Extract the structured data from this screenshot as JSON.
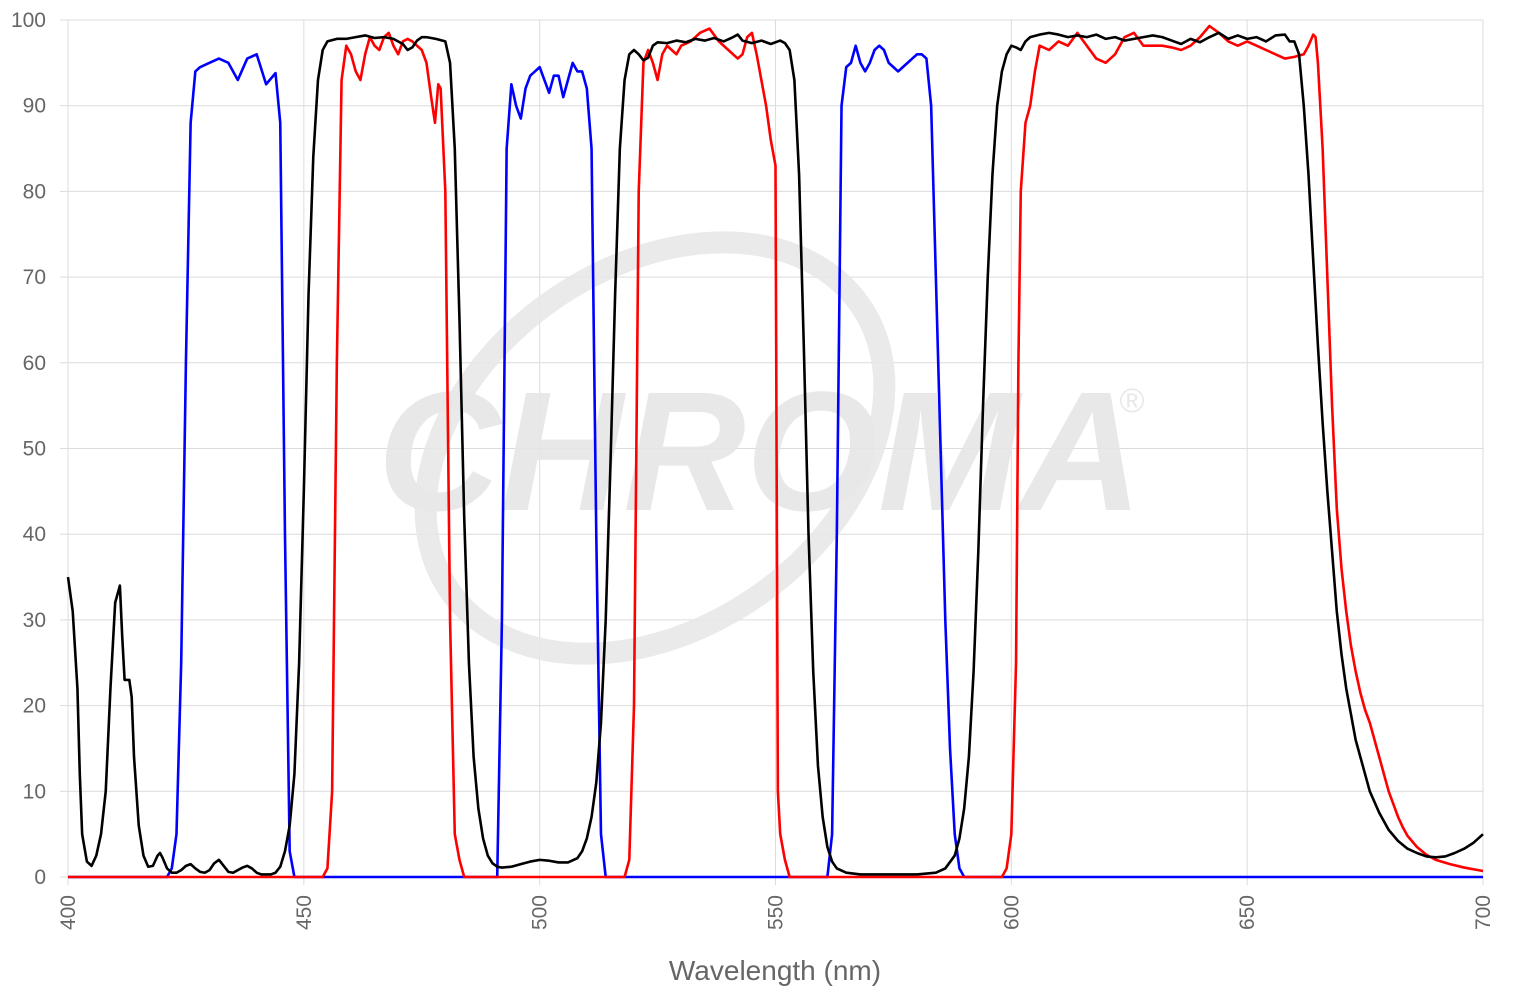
{
  "chart_data": {
    "type": "line",
    "watermark": "CHROMA",
    "watermark_mark": "®",
    "xlabel": "Wavelength (nm)",
    "xlim": [
      400,
      700
    ],
    "xticks": [
      400,
      450,
      500,
      550,
      600,
      650,
      700
    ],
    "ylim": [
      0,
      100
    ],
    "yticks": [
      0,
      10,
      20,
      30,
      40,
      50,
      60,
      70,
      80,
      90,
      100
    ],
    "grid": true,
    "series": [
      {
        "color": "#0000ff",
        "x": [
          400,
          421,
          422,
          423,
          424,
          425,
          426,
          427,
          428,
          430,
          432,
          434,
          436,
          438,
          440,
          442,
          444,
          445,
          446,
          447,
          448,
          490,
          491,
          492,
          493,
          494,
          495,
          496,
          497,
          498,
          499,
          500,
          501,
          502,
          503,
          504,
          505,
          506,
          507,
          508,
          509,
          510,
          511,
          512,
          513,
          514,
          560,
          561,
          562,
          563,
          564,
          565,
          566,
          567,
          568,
          569,
          570,
          571,
          572,
          573,
          574,
          575,
          576,
          577,
          578,
          579,
          580,
          581,
          582,
          583,
          584,
          585,
          586,
          587,
          588,
          589,
          590,
          700
        ],
        "values": [
          0,
          0,
          1,
          5,
          25,
          60,
          88,
          94,
          94.5,
          95,
          95.5,
          95,
          93,
          95.5,
          96,
          92.5,
          93.8,
          88,
          40,
          3,
          0,
          0,
          0,
          30,
          85,
          92.5,
          90,
          88.5,
          92,
          93.5,
          94,
          94.5,
          93,
          91.5,
          93.5,
          93.5,
          91,
          93,
          95,
          94,
          94,
          92,
          85,
          40,
          5,
          0,
          0,
          0,
          5,
          40,
          90,
          94.5,
          95,
          97,
          95,
          94,
          95,
          96.5,
          97,
          96.5,
          95,
          94.5,
          94,
          94.5,
          95,
          95.5,
          96,
          96,
          95.5,
          90,
          70,
          50,
          30,
          15,
          5,
          1,
          0,
          0
        ]
      },
      {
        "color": "#ff0000",
        "x": [
          400,
          454,
          455,
          456,
          457,
          458,
          459,
          460,
          461,
          462,
          463,
          464,
          465,
          466,
          467,
          468,
          469,
          470,
          471,
          472,
          473,
          474,
          475,
          476,
          477,
          477.8,
          478.5,
          479,
          480,
          481,
          482,
          483,
          484,
          518,
          519,
          520,
          521,
          522,
          523,
          524,
          525,
          526,
          527,
          528,
          529,
          530,
          532,
          534,
          536,
          538,
          540,
          542,
          543,
          544,
          545,
          546,
          547,
          548,
          549,
          550,
          550.5,
          551,
          552,
          553,
          598,
          599,
          600,
          601,
          601.5,
          602,
          603,
          604,
          605,
          606,
          608,
          610,
          612,
          614,
          616,
          618,
          620,
          622,
          624,
          626,
          628,
          630,
          632,
          634,
          636,
          638,
          640,
          642,
          644,
          646,
          648,
          650,
          652,
          654,
          656,
          658,
          660,
          662,
          663,
          664,
          664.5,
          665,
          666,
          667,
          668,
          669,
          670,
          671,
          672,
          673,
          674,
          675,
          676,
          677,
          678,
          679,
          680,
          681,
          682,
          683,
          684,
          686,
          688,
          690,
          693,
          696,
          700
        ],
        "values": [
          0,
          0,
          1,
          10,
          60,
          93,
          97,
          96,
          94,
          93,
          96,
          98,
          97,
          96.5,
          98,
          98.5,
          97,
          96,
          97.5,
          97.8,
          97.5,
          97,
          96.5,
          95,
          91,
          88,
          92.5,
          92,
          80,
          30,
          5,
          2,
          0,
          0,
          2,
          20,
          80,
          95,
          96.5,
          95,
          93,
          96,
          97,
          96.5,
          96,
          97,
          97.5,
          98.5,
          99,
          97.5,
          96.5,
          95.5,
          96,
          98,
          98.5,
          96,
          93,
          90,
          86,
          83,
          10,
          5,
          2,
          0,
          0,
          1,
          5,
          25,
          60,
          80,
          88,
          90,
          94,
          97,
          96.5,
          97.5,
          97,
          98.5,
          97,
          95.5,
          95,
          96,
          98,
          98.5,
          97,
          97,
          97,
          96.8,
          96.5,
          97,
          98,
          99.3,
          98.5,
          97.5,
          97,
          97.5,
          97,
          96.5,
          96,
          95.5,
          95.7,
          96,
          97,
          98.3,
          98,
          95,
          85,
          70,
          55,
          43,
          36,
          31,
          27,
          24,
          21.5,
          19.5,
          18,
          16,
          14,
          12,
          10,
          8.5,
          7,
          5.8,
          4.8,
          3.5,
          2.6,
          2,
          1.5,
          1.1,
          0.7
        ]
      },
      {
        "color": "#000000",
        "x": [
          400,
          401,
          402,
          402.5,
          403,
          404,
          405,
          406,
          407,
          408,
          409,
          410,
          411,
          411.5,
          412,
          413,
          413.5,
          414,
          415,
          416,
          417,
          418,
          419,
          419.5,
          420,
          421,
          422,
          423,
          424,
          425,
          426,
          427,
          428,
          429,
          430,
          431,
          432,
          433,
          434,
          435,
          436,
          437,
          438,
          439,
          440,
          441,
          443,
          444,
          445,
          446,
          447,
          448,
          449,
          450,
          451,
          452,
          453,
          454,
          455,
          457,
          459,
          461,
          463,
          465,
          467,
          469,
          471,
          472,
          473,
          474,
          475,
          476,
          478,
          480,
          481,
          482,
          483,
          484,
          485,
          486,
          487,
          488,
          489,
          490,
          491,
          492,
          494,
          496,
          498,
          500,
          502,
          504,
          506,
          508,
          509,
          510,
          511,
          512,
          513,
          514,
          515,
          516,
          517,
          518,
          519,
          520,
          521,
          522,
          523,
          524,
          525,
          527,
          529,
          531,
          533,
          535,
          537,
          539,
          541,
          542,
          543,
          545,
          547,
          549,
          551,
          552,
          553,
          554,
          555,
          556,
          557,
          558,
          559,
          560,
          561,
          562,
          563,
          565,
          568,
          580,
          584,
          586,
          588,
          589,
          590,
          591,
          592,
          593,
          594,
          595,
          596,
          597,
          598,
          599,
          600,
          601,
          602,
          603,
          604,
          606,
          608,
          610,
          612,
          614,
          616,
          618,
          620,
          622,
          624,
          626,
          628,
          630,
          632,
          634,
          636,
          638,
          640,
          642,
          644,
          646,
          648,
          650,
          652,
          654,
          656,
          658,
          659,
          660,
          661,
          662,
          663,
          664,
          665,
          666,
          667,
          668,
          669,
          670,
          671,
          672,
          673,
          674,
          675,
          676,
          678,
          680,
          682,
          684,
          686,
          688,
          690,
          692,
          694,
          696,
          698,
          700
        ],
        "values": [
          35,
          31,
          22,
          12,
          5,
          1.8,
          1.3,
          2.5,
          5,
          10,
          22,
          32,
          34,
          28,
          23,
          23,
          21,
          14,
          6,
          2.5,
          1.2,
          1.3,
          2.5,
          2.8,
          2.3,
          1,
          0.5,
          0.5,
          0.8,
          1.3,
          1.5,
          1,
          0.6,
          0.5,
          0.8,
          1.6,
          2,
          1.3,
          0.6,
          0.5,
          0.8,
          1.1,
          1.3,
          1,
          0.5,
          0.3,
          0.3,
          0.5,
          1.2,
          3,
          6,
          12,
          25,
          45,
          68,
          84,
          93,
          96.5,
          97.5,
          97.8,
          97.8,
          98,
          98.2,
          97.9,
          98,
          97.8,
          97.2,
          96.5,
          96.8,
          97.6,
          98,
          98,
          97.8,
          97.5,
          95,
          85,
          65,
          42,
          25,
          14,
          8,
          4.5,
          2.5,
          1.6,
          1.2,
          1.1,
          1.2,
          1.5,
          1.8,
          2,
          1.9,
          1.7,
          1.7,
          2.2,
          3,
          4.5,
          7,
          11,
          18,
          30,
          48,
          68,
          85,
          93,
          96,
          96.5,
          96,
          95.3,
          95.6,
          97,
          97.4,
          97.3,
          97.6,
          97.4,
          97.8,
          97.6,
          97.9,
          97.5,
          98,
          98.3,
          97.6,
          97.3,
          97.6,
          97.2,
          97.6,
          97.3,
          96.5,
          93,
          82,
          62,
          40,
          24,
          13,
          7,
          3.5,
          1.8,
          1,
          0.5,
          0.3,
          0.3,
          0.5,
          1,
          2.5,
          4.5,
          8,
          14,
          24,
          38,
          55,
          70,
          82,
          90,
          94,
          96,
          97,
          96.8,
          96.5,
          97.5,
          98,
          98.3,
          98.5,
          98.3,
          98,
          98.2,
          98,
          98.3,
          97.8,
          98,
          97.6,
          97.8,
          98,
          98.2,
          98,
          97.6,
          97.2,
          97.8,
          97.4,
          98,
          98.5,
          97.8,
          98.2,
          97.8,
          98,
          97.5,
          98.2,
          98.3,
          97.5,
          97.5,
          96,
          90,
          82,
          72,
          62,
          53,
          45,
          38,
          31,
          26,
          22,
          19,
          16,
          14,
          12,
          10,
          7.5,
          5.5,
          4.2,
          3.3,
          2.8,
          2.4,
          2.3,
          2.4,
          2.8,
          3.3,
          4,
          5
        ]
      }
    ]
  }
}
